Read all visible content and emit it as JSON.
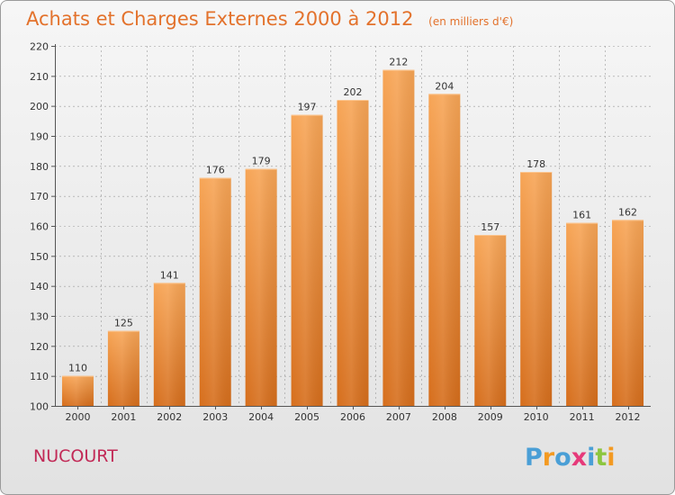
{
  "header": {
    "title": "Achats et Charges Externes 2000 à 2012",
    "subtitle": "(en milliers d'€)"
  },
  "footer": {
    "commune": "NUCOURT",
    "logo_text": "Proxiti"
  },
  "colors": {
    "title": "#e3722c",
    "commune": "#c22a57",
    "bar_top": "#f7a556",
    "bar_bottom": "#d66e1c",
    "axis": "#555555",
    "grid": "#999999"
  },
  "chart_data": {
    "type": "bar",
    "title": "Achats et Charges Externes 2000 à 2012",
    "subtitle": "(en milliers d'€)",
    "xlabel": "",
    "ylabel": "",
    "categories": [
      "2000",
      "2001",
      "2002",
      "2003",
      "2004",
      "2005",
      "2006",
      "2007",
      "2008",
      "2009",
      "2010",
      "2011",
      "2012"
    ],
    "values": [
      110,
      125,
      141,
      176,
      179,
      197,
      202,
      212,
      204,
      157,
      178,
      161,
      162
    ],
    "ylim": [
      100,
      220
    ],
    "yticks": [
      100,
      110,
      120,
      130,
      140,
      150,
      160,
      170,
      180,
      190,
      200,
      210,
      220
    ],
    "grid": true,
    "legend": "none"
  }
}
